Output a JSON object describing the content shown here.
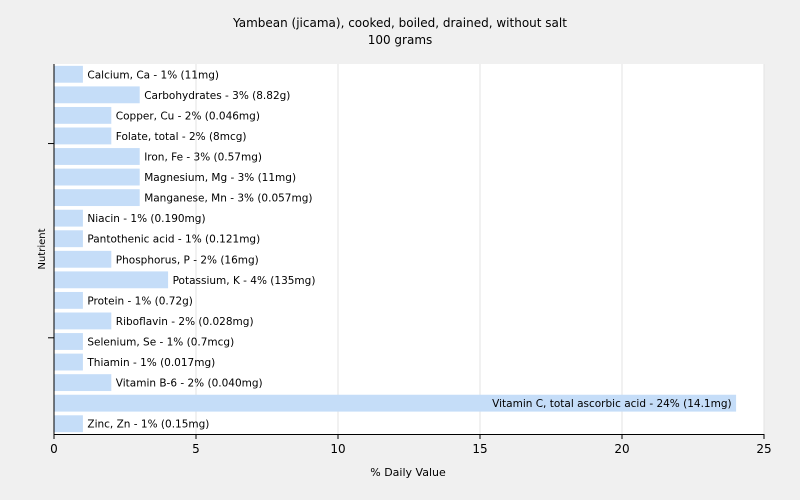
{
  "chart_data": {
    "type": "bar",
    "orientation": "horizontal",
    "title": "Yambean (jicama), cooked, boiled, drained, without salt",
    "subtitle": "100 grams",
    "xlabel": "% Daily Value",
    "ylabel": "Nutrient",
    "xlim": [
      0,
      25
    ],
    "xticks": [
      "0",
      "5",
      "10",
      "15",
      "20",
      "25"
    ],
    "grid": true,
    "bar_color": "#c5ddf8",
    "categories": [
      "Calcium, Ca",
      "Carbohydrates",
      "Copper, Cu",
      "Folate, total",
      "Iron, Fe",
      "Magnesium, Mg",
      "Manganese, Mn",
      "Niacin",
      "Pantothenic acid",
      "Phosphorus, P",
      "Potassium, K",
      "Protein",
      "Riboflavin",
      "Selenium, Se",
      "Thiamin",
      "Vitamin B-6",
      "Vitamin C, total ascorbic acid",
      "Zinc, Zn"
    ],
    "values": [
      1,
      3,
      2,
      2,
      3,
      3,
      3,
      1,
      1,
      2,
      4,
      1,
      2,
      1,
      1,
      2,
      24,
      1
    ],
    "labels": [
      "Calcium, Ca - 1% (11mg)",
      "Carbohydrates - 3% (8.82g)",
      "Copper, Cu - 2% (0.046mg)",
      "Folate, total - 2% (8mcg)",
      "Iron, Fe - 3% (0.57mg)",
      "Magnesium, Mg - 3% (11mg)",
      "Manganese, Mn - 3% (0.057mg)",
      "Niacin - 1% (0.190mg)",
      "Pantothenic acid - 1% (0.121mg)",
      "Phosphorus, P - 2% (16mg)",
      "Potassium, K - 4% (135mg)",
      "Protein - 1% (0.72g)",
      "Riboflavin - 2% (0.028mg)",
      "Selenium, Se - 1% (0.7mcg)",
      "Thiamin - 1% (0.017mg)",
      "Vitamin B-6 - 2% (0.040mg)",
      "Vitamin C, total ascorbic acid - 24% (14.1mg)",
      "Zinc, Zn - 1% (0.15mg)"
    ]
  }
}
